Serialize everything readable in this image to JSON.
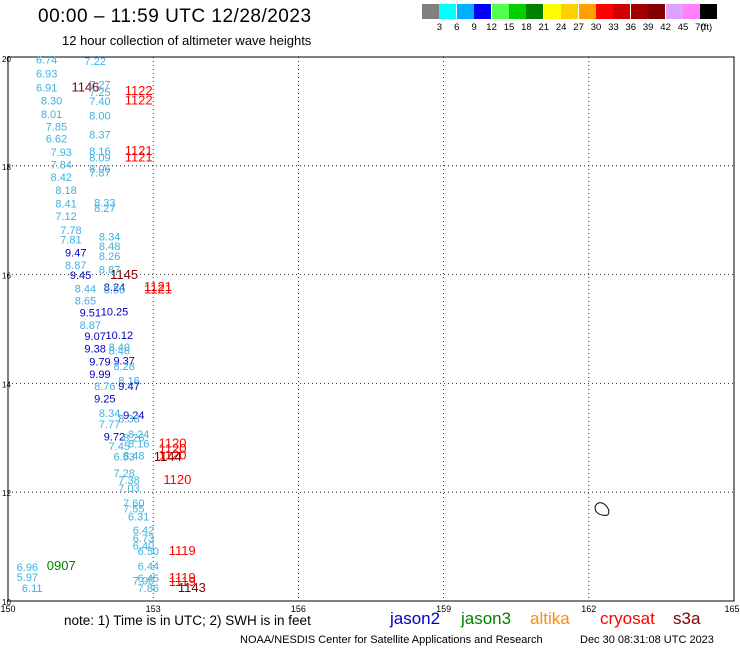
{
  "header": {
    "title": "00:00 – 11:59 UTC 12/28/2023",
    "subtitle": "12 hour collection of altimeter wave heights"
  },
  "legend": {
    "colors": [
      "#808080",
      "#00ffff",
      "#00b0ff",
      "#0000ff",
      "#50ff50",
      "#00d000",
      "#008000",
      "#ffff00",
      "#ffd000",
      "#ffa000",
      "#ff0000",
      "#d00000",
      "#a00000",
      "#800000",
      "#e0a0ff",
      "#ff80ff",
      "#000000"
    ],
    "labels": [
      "3",
      "6",
      "9",
      "12",
      "15",
      "18",
      "21",
      "24",
      "27",
      "30",
      "33",
      "36",
      "39",
      "42",
      "45",
      "70",
      "(ft)"
    ]
  },
  "axes": {
    "lon_ticks": [
      "150",
      "153",
      "156",
      "159",
      "162",
      "165"
    ],
    "lat_ticks": [
      "10",
      "12",
      "14",
      "16",
      "18",
      "20"
    ]
  },
  "map": {
    "colors": {
      "j2": "#0000c0",
      "j3": "#008000",
      "altika": "#ff8c00",
      "cryosat": "#ff0000",
      "s3a": "#800000",
      "c_lt": "#40b0e0"
    },
    "values": [
      {
        "t": "6.74",
        "lon": 150.8,
        "lat": 19.88,
        "c": "c_lt"
      },
      {
        "t": "7.22",
        "lon": 151.8,
        "lat": 19.85,
        "c": "c_lt"
      },
      {
        "t": "6.93",
        "lon": 150.8,
        "lat": 19.62,
        "c": "c_lt"
      },
      {
        "t": "7.27",
        "lon": 151.9,
        "lat": 19.42,
        "c": "c_lt"
      },
      {
        "t": "6.91",
        "lon": 150.8,
        "lat": 19.37,
        "c": "c_lt"
      },
      {
        "t": "1146",
        "lon": 151.6,
        "lat": 19.37,
        "c": "s3a"
      },
      {
        "t": "7.25",
        "lon": 151.9,
        "lat": 19.28,
        "c": "c_lt"
      },
      {
        "t": "1122",
        "lon": 152.7,
        "lat": 19.3,
        "c": "cryosat"
      },
      {
        "t": "8.30",
        "lon": 150.9,
        "lat": 19.13,
        "c": "c_lt"
      },
      {
        "t": "7.40",
        "lon": 151.9,
        "lat": 19.12,
        "c": "c_lt"
      },
      {
        "t": "1122",
        "lon": 152.7,
        "lat": 19.13,
        "c": "cryosat"
      },
      {
        "t": "8.01",
        "lon": 150.9,
        "lat": 18.88,
        "c": "c_lt"
      },
      {
        "t": "8.00",
        "lon": 151.9,
        "lat": 18.85,
        "c": "c_lt"
      },
      {
        "t": "7.85",
        "lon": 151.0,
        "lat": 18.65,
        "c": "c_lt"
      },
      {
        "t": "8.37",
        "lon": 151.9,
        "lat": 18.5,
        "c": "c_lt"
      },
      {
        "t": "6.62",
        "lon": 151.0,
        "lat": 18.43,
        "c": "c_lt"
      },
      {
        "t": "7.93",
        "lon": 151.1,
        "lat": 18.18,
        "c": "c_lt"
      },
      {
        "t": "8.16",
        "lon": 151.9,
        "lat": 18.2,
        "c": "c_lt"
      },
      {
        "t": "1121",
        "lon": 152.7,
        "lat": 18.2,
        "c": "cryosat"
      },
      {
        "t": "8.09",
        "lon": 151.9,
        "lat": 18.08,
        "c": "c_lt"
      },
      {
        "t": "1121",
        "lon": 152.7,
        "lat": 18.08,
        "c": "cryosat"
      },
      {
        "t": "7.84",
        "lon": 151.1,
        "lat": 17.95,
        "c": "c_lt"
      },
      {
        "t": "8.06",
        "lon": 151.9,
        "lat": 17.88,
        "c": "c_lt"
      },
      {
        "t": "7.87",
        "lon": 151.9,
        "lat": 17.8,
        "c": "c_lt"
      },
      {
        "t": "8.42",
        "lon": 151.1,
        "lat": 17.72,
        "c": "c_lt"
      },
      {
        "t": "8.18",
        "lon": 151.2,
        "lat": 17.48,
        "c": "c_lt"
      },
      {
        "t": "8.41",
        "lon": 151.2,
        "lat": 17.23,
        "c": "c_lt"
      },
      {
        "t": "8.33",
        "lon": 152.0,
        "lat": 17.25,
        "c": "c_lt"
      },
      {
        "t": "8.27",
        "lon": 152.0,
        "lat": 17.15,
        "c": "c_lt"
      },
      {
        "t": "7.12",
        "lon": 151.2,
        "lat": 17.0,
        "c": "c_lt"
      },
      {
        "t": "7.78",
        "lon": 151.3,
        "lat": 16.75,
        "c": "c_lt"
      },
      {
        "t": "8.34",
        "lon": 152.1,
        "lat": 16.63,
        "c": "c_lt"
      },
      {
        "t": "7.81",
        "lon": 151.3,
        "lat": 16.57,
        "c": "c_lt"
      },
      {
        "t": "8.48",
        "lon": 152.1,
        "lat": 16.45,
        "c": "c_lt"
      },
      {
        "t": "9.47",
        "lon": 151.4,
        "lat": 16.33,
        "c": "j2"
      },
      {
        "t": "8.26",
        "lon": 152.1,
        "lat": 16.27,
        "c": "c_lt"
      },
      {
        "t": "8.87",
        "lon": 151.4,
        "lat": 16.1,
        "c": "c_lt"
      },
      {
        "t": "8.87",
        "lon": 152.1,
        "lat": 16.02,
        "c": "c_lt"
      },
      {
        "t": "9.45",
        "lon": 151.5,
        "lat": 15.92,
        "c": "j2"
      },
      {
        "t": "1145",
        "lon": 152.4,
        "lat": 15.92,
        "c": "s3a"
      },
      {
        "t": "8.44",
        "lon": 151.6,
        "lat": 15.67,
        "c": "c_lt"
      },
      {
        "t": "8.24",
        "lon": 152.2,
        "lat": 15.7,
        "c": "j2"
      },
      {
        "t": "8.56",
        "lon": 152.2,
        "lat": 15.65,
        "c": "c_lt"
      },
      {
        "t": "1121",
        "lon": 153.1,
        "lat": 15.7,
        "c": "cryosat"
      },
      {
        "t": "1121",
        "lon": 153.1,
        "lat": 15.65,
        "c": "cryosat"
      },
      {
        "t": "8.65",
        "lon": 151.6,
        "lat": 15.45,
        "c": "c_lt"
      },
      {
        "t": "9.51",
        "lon": 151.7,
        "lat": 15.23,
        "c": "j2"
      },
      {
        "t": "10.25",
        "lon": 152.2,
        "lat": 15.25,
        "c": "j2"
      },
      {
        "t": "8.87",
        "lon": 151.7,
        "lat": 15.0,
        "c": "c_lt"
      },
      {
        "t": "9.07",
        "lon": 151.8,
        "lat": 14.8,
        "c": "j2"
      },
      {
        "t": "10.12",
        "lon": 152.3,
        "lat": 14.82,
        "c": "j2"
      },
      {
        "t": "8.40",
        "lon": 152.3,
        "lat": 14.6,
        "c": "c_lt"
      },
      {
        "t": "9.38",
        "lon": 151.8,
        "lat": 14.57,
        "c": "j2"
      },
      {
        "t": "8.46",
        "lon": 152.3,
        "lat": 14.53,
        "c": "c_lt"
      },
      {
        "t": "9.79",
        "lon": 151.9,
        "lat": 14.33,
        "c": "j2"
      },
      {
        "t": "9.37",
        "lon": 152.4,
        "lat": 14.35,
        "c": "j2"
      },
      {
        "t": "8.28",
        "lon": 152.4,
        "lat": 14.25,
        "c": "c_lt"
      },
      {
        "t": "9.99",
        "lon": 151.9,
        "lat": 14.1,
        "c": "j2"
      },
      {
        "t": "8.16",
        "lon": 152.5,
        "lat": 13.98,
        "c": "c_lt"
      },
      {
        "t": "8.76",
        "lon": 152.0,
        "lat": 13.88,
        "c": "c_lt"
      },
      {
        "t": "9.47",
        "lon": 152.5,
        "lat": 13.88,
        "c": "j2"
      },
      {
        "t": "9.25",
        "lon": 152.0,
        "lat": 13.65,
        "c": "j2"
      },
      {
        "t": "8.34",
        "lon": 152.1,
        "lat": 13.38,
        "c": "c_lt"
      },
      {
        "t": "9.24",
        "lon": 152.6,
        "lat": 13.35,
        "c": "j2"
      },
      {
        "t": "8.38",
        "lon": 152.5,
        "lat": 13.28,
        "c": "c_lt"
      },
      {
        "t": "7.77",
        "lon": 152.1,
        "lat": 13.18,
        "c": "c_lt"
      },
      {
        "t": "8.24",
        "lon": 152.7,
        "lat": 13.0,
        "c": "c_lt"
      },
      {
        "t": "9.72",
        "lon": 152.2,
        "lat": 12.95,
        "c": "j2"
      },
      {
        "t": "8.26",
        "lon": 152.6,
        "lat": 12.93,
        "c": "c_lt"
      },
      {
        "t": "1120",
        "lon": 153.4,
        "lat": 12.82,
        "c": "cryosat"
      },
      {
        "t": "8.16",
        "lon": 152.7,
        "lat": 12.82,
        "c": "c_lt"
      },
      {
        "t": "7.45",
        "lon": 152.3,
        "lat": 12.78,
        "c": "c_lt"
      },
      {
        "t": "1120",
        "lon": 153.4,
        "lat": 12.72,
        "c": "cryosat"
      },
      {
        "t": "8.48",
        "lon": 152.6,
        "lat": 12.6,
        "c": "c_lt"
      },
      {
        "t": "6.53",
        "lon": 152.4,
        "lat": 12.58,
        "c": "c_lt"
      },
      {
        "t": "1120",
        "lon": 153.4,
        "lat": 12.6,
        "c": "cryosat"
      },
      {
        "t": "1144",
        "lon": 153.3,
        "lat": 12.57,
        "c": "s3a"
      },
      {
        "t": "7.28",
        "lon": 152.4,
        "lat": 12.28,
        "c": "c_lt"
      },
      {
        "t": "7.38",
        "lon": 152.5,
        "lat": 12.15,
        "c": "c_lt"
      },
      {
        "t": "1120",
        "lon": 153.5,
        "lat": 12.15,
        "c": "cryosat"
      },
      {
        "t": "7.03",
        "lon": 152.5,
        "lat": 12.0,
        "c": "c_lt"
      },
      {
        "t": "7.60",
        "lon": 152.6,
        "lat": 11.73,
        "c": "c_lt"
      },
      {
        "t": "7.55",
        "lon": 152.6,
        "lat": 11.63,
        "c": "c_lt"
      },
      {
        "t": "6.31",
        "lon": 152.7,
        "lat": 11.48,
        "c": "c_lt"
      },
      {
        "t": "6.42",
        "lon": 152.8,
        "lat": 11.23,
        "c": "c_lt"
      },
      {
        "t": "6.73",
        "lon": 152.8,
        "lat": 11.08,
        "c": "c_lt"
      },
      {
        "t": "6.40",
        "lon": 152.8,
        "lat": 10.95,
        "c": "c_lt"
      },
      {
        "t": "6.50",
        "lon": 152.9,
        "lat": 10.85,
        "c": "c_lt"
      },
      {
        "t": "1119",
        "lon": 153.6,
        "lat": 10.85,
        "c": "cryosat"
      },
      {
        "t": "6.44",
        "lon": 152.9,
        "lat": 10.57,
        "c": "c_lt"
      },
      {
        "t": "6.96",
        "lon": 150.4,
        "lat": 10.55,
        "c": "c_lt"
      },
      {
        "t": "0907",
        "lon": 151.1,
        "lat": 10.57,
        "c": "j3"
      },
      {
        "t": "5.97",
        "lon": 150.4,
        "lat": 10.37,
        "c": "c_lt"
      },
      {
        "t": "6.45",
        "lon": 152.9,
        "lat": 10.35,
        "c": "c_lt"
      },
      {
        "t": "1119",
        "lon": 153.6,
        "lat": 10.35,
        "c": "cryosat"
      },
      {
        "t": "7.00",
        "lon": 152.8,
        "lat": 10.3,
        "c": "c_lt"
      },
      {
        "t": "1119",
        "lon": 153.6,
        "lat": 10.28,
        "c": "cryosat"
      },
      {
        "t": "6.11",
        "lon": 150.5,
        "lat": 10.17,
        "c": "c_lt"
      },
      {
        "t": "7.86",
        "lon": 152.9,
        "lat": 10.17,
        "c": "c_lt"
      },
      {
        "t": "1143",
        "lon": 153.8,
        "lat": 10.17,
        "c": "s3a"
      }
    ]
  },
  "footer": {
    "note": "note:  1) Time is in UTC;  2) SWH is in feet",
    "satellites": [
      {
        "name": "jason2",
        "color": "#0000c0"
      },
      {
        "name": "jason3",
        "color": "#008000"
      },
      {
        "name": "altika",
        "color": "#ff8c00"
      },
      {
        "name": "cryosat",
        "color": "#ff0000"
      },
      {
        "name": "s3a",
        "color": "#800000"
      }
    ],
    "credit": "NOAA/NESDIS Center for Satellite Applications and Research",
    "timestamp": "Dec 30 08:31:08 UTC 2023"
  }
}
